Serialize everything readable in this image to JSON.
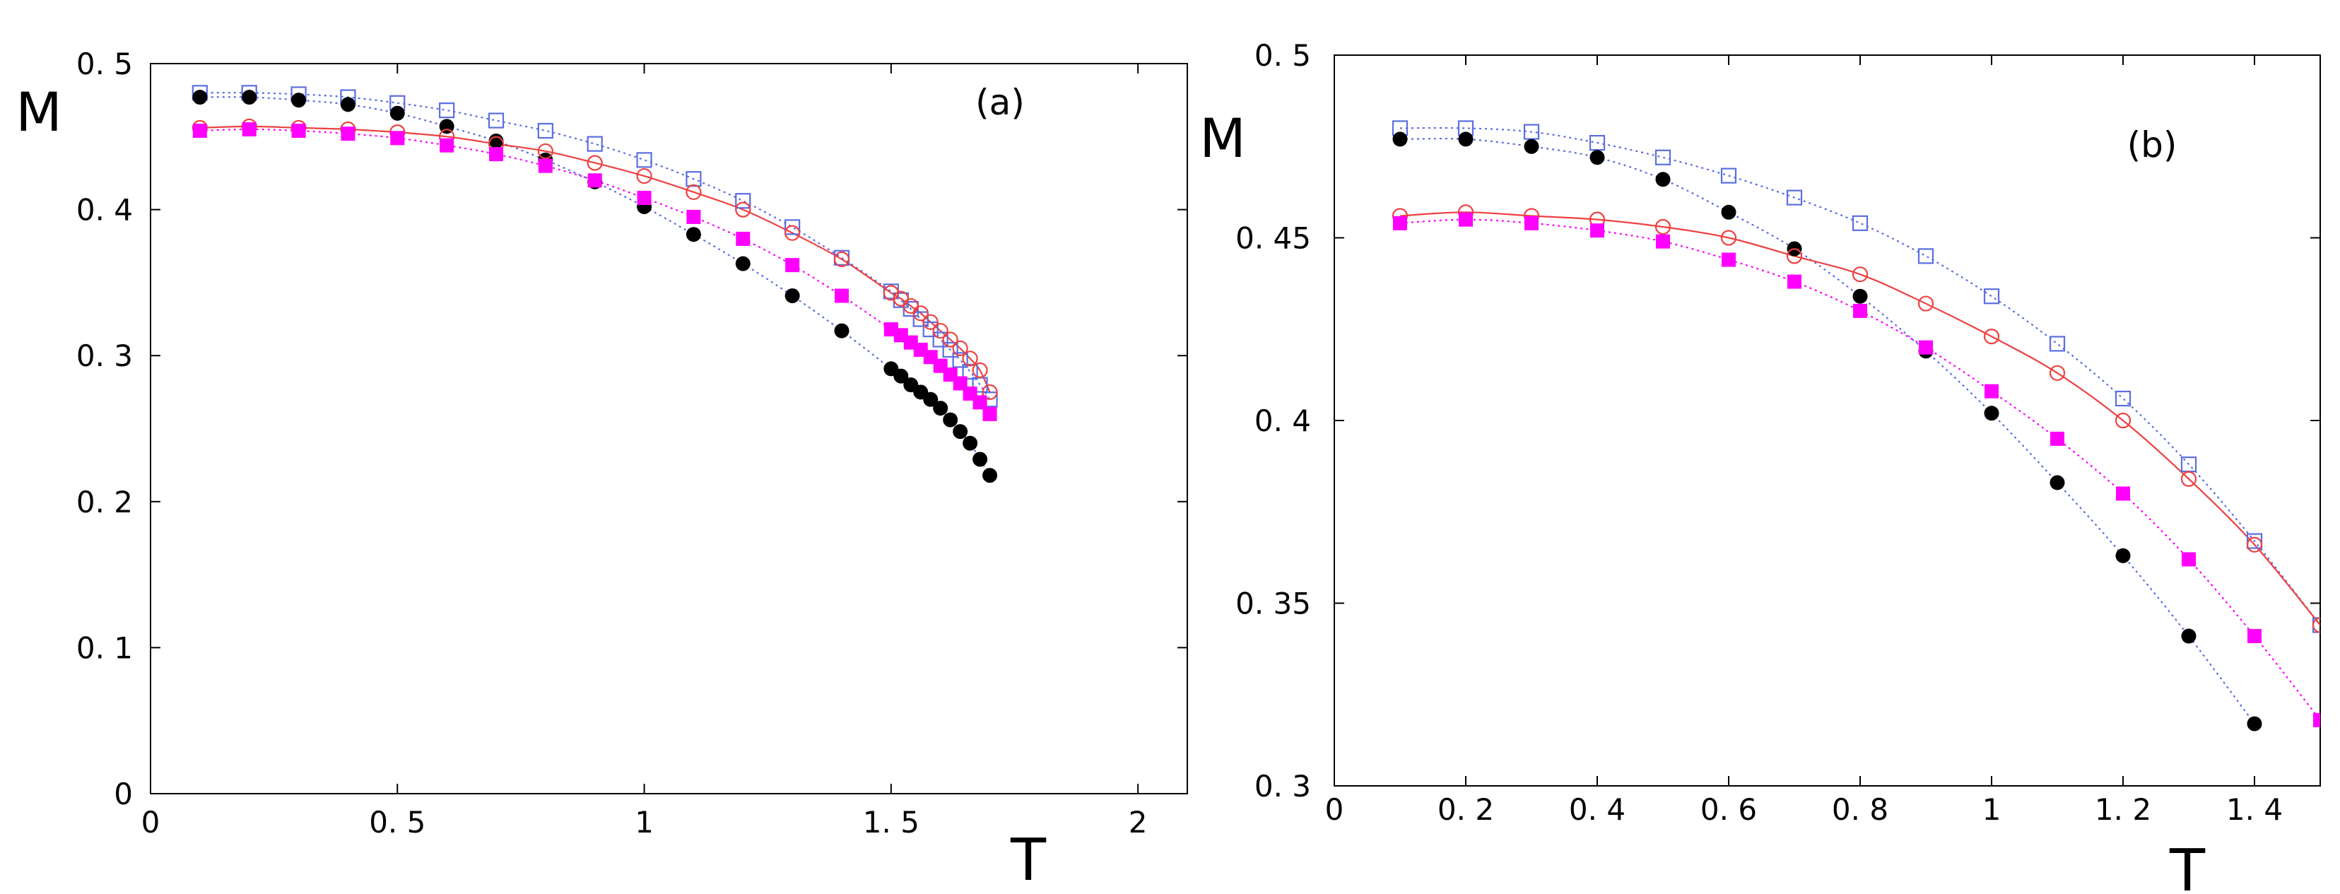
{
  "chart_data": [
    {
      "type": "scatter",
      "panel_label": "(a)",
      "xlabel": "T",
      "ylabel": "M",
      "xlim": [
        0,
        2.1
      ],
      "ylim": [
        0,
        0.5
      ],
      "x_ticks": [
        0,
        0.5,
        1,
        1.5,
        2
      ],
      "x_tick_labels": [
        "0",
        "0. 5",
        "1",
        "1. 5",
        "2"
      ],
      "y_ticks": [
        0,
        0.1,
        0.2,
        0.3,
        0.4,
        0.5
      ],
      "y_tick_labels": [
        "0",
        "0. 1",
        "0. 2",
        "0. 3",
        "0. 4",
        "0. 5"
      ],
      "series": [
        {
          "name": "open squares",
          "marker": "open-square",
          "color": "#5b6ee1",
          "line": "dotted",
          "x": [
            0.1,
            0.2,
            0.3,
            0.4,
            0.5,
            0.6,
            0.7,
            0.8,
            0.9,
            1.0,
            1.1,
            1.2,
            1.3,
            1.4,
            1.5,
            1.52,
            1.54,
            1.56,
            1.58,
            1.6,
            1.62,
            1.64,
            1.66,
            1.68,
            1.7
          ],
          "y": [
            0.48,
            0.48,
            0.479,
            0.477,
            0.473,
            0.468,
            0.461,
            0.454,
            0.445,
            0.434,
            0.421,
            0.406,
            0.388,
            0.367,
            0.344,
            0.338,
            0.332,
            0.325,
            0.318,
            0.311,
            0.304,
            0.297,
            0.289,
            0.28,
            0.27
          ]
        },
        {
          "name": "filled circles",
          "marker": "filled-circle",
          "color": "#000000",
          "line": "dotted",
          "line_color": "#5b6ee1",
          "x": [
            0.1,
            0.2,
            0.3,
            0.4,
            0.5,
            0.6,
            0.7,
            0.8,
            0.9,
            1.0,
            1.1,
            1.2,
            1.3,
            1.4,
            1.5,
            1.52,
            1.54,
            1.56,
            1.58,
            1.6,
            1.62,
            1.64,
            1.66,
            1.68,
            1.7
          ],
          "y": [
            0.477,
            0.477,
            0.475,
            0.472,
            0.466,
            0.457,
            0.447,
            0.434,
            0.419,
            0.402,
            0.383,
            0.363,
            0.341,
            0.317,
            0.291,
            0.286,
            0.28,
            0.275,
            0.27,
            0.264,
            0.256,
            0.248,
            0.24,
            0.229,
            0.218
          ]
        },
        {
          "name": "open circles",
          "marker": "open-circle",
          "color": "#ee4040",
          "line": "solid",
          "x": [
            0.1,
            0.2,
            0.3,
            0.4,
            0.5,
            0.6,
            0.7,
            0.8,
            0.9,
            1.0,
            1.1,
            1.2,
            1.3,
            1.4,
            1.5,
            1.52,
            1.54,
            1.56,
            1.58,
            1.6,
            1.62,
            1.64,
            1.66,
            1.68,
            1.7
          ],
          "y": [
            0.456,
            0.457,
            0.456,
            0.455,
            0.453,
            0.45,
            0.445,
            0.44,
            0.432,
            0.423,
            0.412,
            0.4,
            0.384,
            0.366,
            0.343,
            0.339,
            0.334,
            0.329,
            0.323,
            0.317,
            0.311,
            0.305,
            0.298,
            0.29,
            0.275
          ]
        },
        {
          "name": "filled squares",
          "marker": "filled-square",
          "color": "#ff00ff",
          "line": "dotted",
          "x": [
            0.1,
            0.2,
            0.3,
            0.4,
            0.5,
            0.6,
            0.7,
            0.8,
            0.9,
            1.0,
            1.1,
            1.2,
            1.3,
            1.4,
            1.5,
            1.52,
            1.54,
            1.56,
            1.58,
            1.6,
            1.62,
            1.64,
            1.66,
            1.68,
            1.7
          ],
          "y": [
            0.454,
            0.455,
            0.454,
            0.452,
            0.449,
            0.444,
            0.438,
            0.43,
            0.42,
            0.408,
            0.395,
            0.38,
            0.362,
            0.341,
            0.318,
            0.314,
            0.309,
            0.304,
            0.299,
            0.293,
            0.287,
            0.281,
            0.274,
            0.268,
            0.26
          ]
        }
      ]
    },
    {
      "type": "scatter",
      "panel_label": "(b)",
      "xlabel": "T",
      "ylabel": "M",
      "xlim": [
        0,
        1.5
      ],
      "ylim": [
        0.3,
        0.5
      ],
      "x_ticks": [
        0,
        0.2,
        0.4,
        0.6,
        0.8,
        1,
        1.2,
        1.4
      ],
      "x_tick_labels": [
        "0",
        "0. 2",
        "0. 4",
        "0. 6",
        "0. 8",
        "1",
        "1. 2",
        "1. 4"
      ],
      "y_ticks": [
        0.3,
        0.35,
        0.4,
        0.45,
        0.5
      ],
      "y_tick_labels": [
        "0. 3",
        "0. 35",
        "0. 4",
        "0. 45",
        "0. 5"
      ],
      "series": [
        {
          "name": "open squares",
          "marker": "open-square",
          "color": "#5b6ee1",
          "line": "dotted",
          "x": [
            0.1,
            0.2,
            0.3,
            0.4,
            0.5,
            0.6,
            0.7,
            0.8,
            0.9,
            1.0,
            1.1,
            1.2,
            1.3,
            1.4,
            1.5
          ],
          "y": [
            0.48,
            0.48,
            0.479,
            0.476,
            0.472,
            0.467,
            0.461,
            0.454,
            0.445,
            0.434,
            0.421,
            0.406,
            0.388,
            0.367,
            0.344
          ]
        },
        {
          "name": "filled circles",
          "marker": "filled-circle",
          "color": "#000000",
          "line": "dotted",
          "line_color": "#5b6ee1",
          "x": [
            0.1,
            0.2,
            0.3,
            0.4,
            0.5,
            0.6,
            0.7,
            0.8,
            0.9,
            1.0,
            1.1,
            1.2,
            1.3,
            1.4
          ],
          "y": [
            0.477,
            0.477,
            0.475,
            0.472,
            0.466,
            0.457,
            0.447,
            0.434,
            0.419,
            0.402,
            0.383,
            0.363,
            0.341,
            0.317
          ]
        },
        {
          "name": "open circles",
          "marker": "open-circle",
          "color": "#ee4040",
          "line": "solid",
          "x": [
            0.1,
            0.2,
            0.3,
            0.4,
            0.5,
            0.6,
            0.7,
            0.8,
            0.9,
            1.0,
            1.1,
            1.2,
            1.3,
            1.4,
            1.5
          ],
          "y": [
            0.456,
            0.457,
            0.456,
            0.455,
            0.453,
            0.45,
            0.445,
            0.44,
            0.432,
            0.423,
            0.413,
            0.4,
            0.384,
            0.366,
            0.344
          ]
        },
        {
          "name": "filled squares",
          "marker": "filled-square",
          "color": "#ff00ff",
          "line": "dotted",
          "x": [
            0.1,
            0.2,
            0.3,
            0.4,
            0.5,
            0.6,
            0.7,
            0.8,
            0.9,
            1.0,
            1.1,
            1.2,
            1.3,
            1.4,
            1.5
          ],
          "y": [
            0.454,
            0.455,
            0.454,
            0.452,
            0.449,
            0.444,
            0.438,
            0.43,
            0.42,
            0.408,
            0.395,
            0.38,
            0.362,
            0.341,
            0.318
          ]
        }
      ]
    }
  ]
}
